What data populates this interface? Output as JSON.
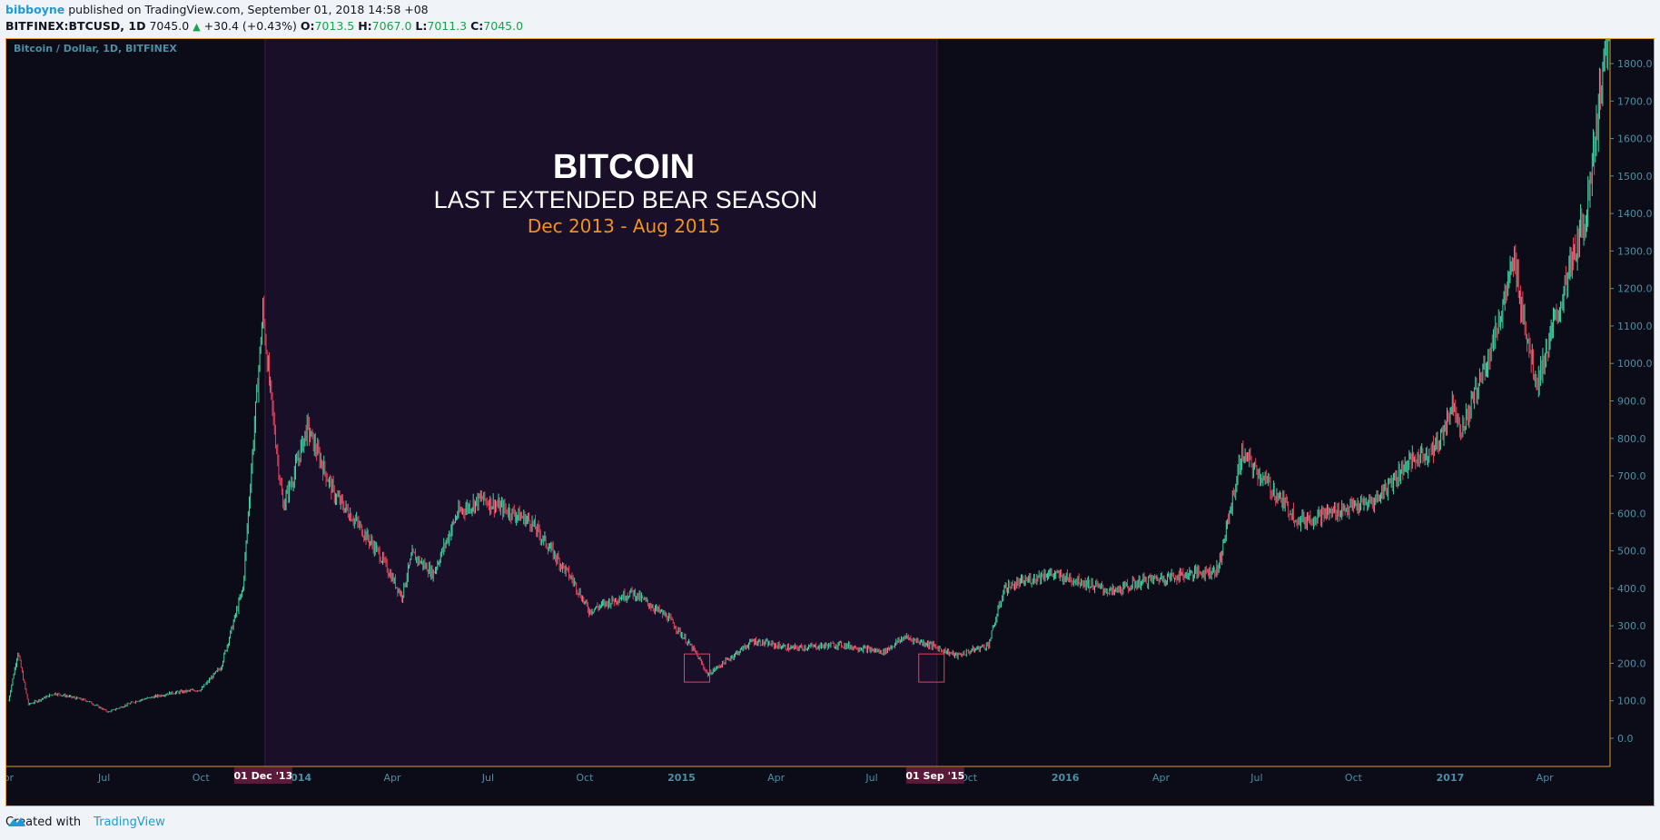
{
  "header": {
    "author": "bibboyne",
    "published": "published on TradingView.com, September 01, 2018 14:58 +08",
    "symbol": "BITFINEX:BTCUSD, 1D",
    "price": "7045.0",
    "change": "+30.4 (+0.43%)",
    "o_label": "O:",
    "o": "7013.5",
    "h_label": "H:",
    "h": "7067.0",
    "l_label": "L:",
    "l": "7011.3",
    "c_label": "C:",
    "c": "7045.0"
  },
  "chart": {
    "pane_title": "Bitcoin / Dollar, 1D, BITFINEX",
    "title": "BITCOIN",
    "subtitle": "LAST EXTENDED BEAR SEASON",
    "date_range": "Dec 2013 - Aug 2015",
    "start_marker": "01 Dec '13",
    "end_marker": "01 Sep '15"
  },
  "colors": {
    "up": "#41d7a7",
    "down": "#e8415c",
    "bear_zone": "#1a0f28",
    "background": "#0b0c18",
    "axis_text": "#4b8fa3",
    "border": "#e29b2c",
    "date_range": "#f0921c",
    "marker_bg": "#5a1a3a"
  },
  "chart_data": {
    "type": "line",
    "title": "BITCOIN",
    "subtitle": "LAST EXTENDED BEAR SEASON",
    "ylim": [
      0,
      1900
    ],
    "y_ticks": [
      "1800.0",
      "1700.0",
      "1600.0",
      "1500.0",
      "1400.0",
      "1300.0",
      "1200.0",
      "1100.0",
      "1000.0",
      "900.0",
      "800.0",
      "700.0",
      "600.0",
      "500.0",
      "400.0",
      "300.0",
      "200.0",
      "100.0",
      "0.0"
    ],
    "x_ticks": [
      "pr",
      "Jul",
      "Oct",
      "2014",
      "Apr",
      "Jul",
      "Oct",
      "2015",
      "Apr",
      "Jul",
      "Oct",
      "2016",
      "Apr",
      "Jul",
      "Oct",
      "2017",
      "Apr"
    ],
    "x": [
      "2013-04-01",
      "2013-04-10",
      "2013-04-20",
      "2013-05-15",
      "2013-06-15",
      "2013-07-05",
      "2013-08-01",
      "2013-09-01",
      "2013-10-01",
      "2013-10-20",
      "2013-11-10",
      "2013-11-20",
      "2013-11-29",
      "2013-12-05",
      "2013-12-18",
      "2013-12-28",
      "2014-01-10",
      "2014-02-05",
      "2014-02-25",
      "2014-03-20",
      "2014-04-10",
      "2014-04-20",
      "2014-05-10",
      "2014-06-02",
      "2014-06-25",
      "2014-07-10",
      "2014-08-10",
      "2014-09-20",
      "2014-10-05",
      "2014-11-15",
      "2014-12-20",
      "2015-01-14",
      "2015-01-26",
      "2015-03-10",
      "2015-04-15",
      "2015-06-01",
      "2015-07-12",
      "2015-08-01",
      "2015-08-25",
      "2015-09-20",
      "2015-10-20",
      "2015-11-04",
      "2015-12-15",
      "2016-01-15",
      "2016-02-15",
      "2016-03-15",
      "2016-05-25",
      "2016-06-17",
      "2016-07-20",
      "2016-08-10",
      "2016-09-20",
      "2016-10-20",
      "2016-11-20",
      "2016-12-20",
      "2017-01-04",
      "2017-01-12",
      "2017-02-10",
      "2017-03-03",
      "2017-03-20",
      "2017-03-25",
      "2017-04-20",
      "2017-05-10",
      "2017-05-25",
      "2017-06-01"
    ],
    "series": [
      {
        "values": [
          100,
          230,
          90,
          120,
          100,
          70,
          100,
          120,
          130,
          190,
          400,
          800,
          1140,
          950,
          620,
          700,
          830,
          650,
          580,
          490,
          380,
          490,
          440,
          600,
          640,
          620,
          580,
          420,
          340,
          390,
          320,
          230,
          170,
          260,
          240,
          250,
          230,
          270,
          250,
          220,
          250,
          400,
          440,
          420,
          390,
          420,
          450,
          760,
          650,
          580,
          610,
          630,
          730,
          780,
          900,
          820,
          1050,
          1270,
          1000,
          950,
          1200,
          1400,
          1750,
          1900
        ]
      }
    ]
  }
}
